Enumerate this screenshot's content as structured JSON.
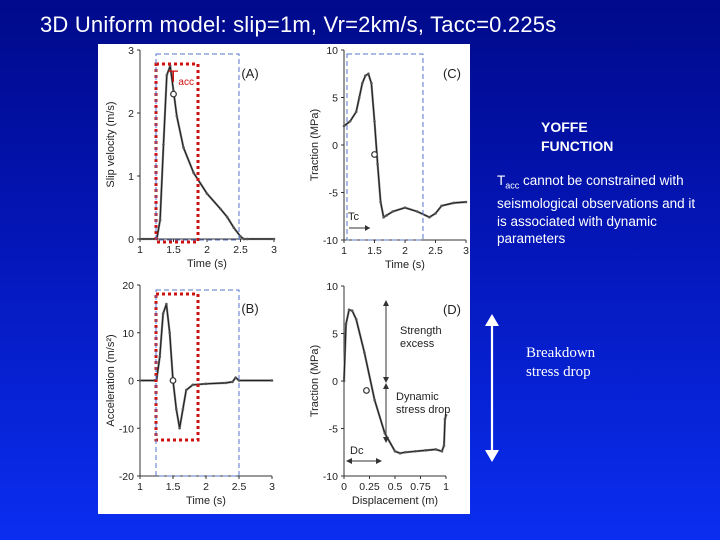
{
  "slide": {
    "title": "3D Uniform model: slip=1m, Vr=2km/s, Tacc=0.225s",
    "yoffe_label": "YOFFE\nFUNCTION",
    "note_main": "T",
    "note_sub": "acc",
    "note_rest": " cannot be constrained with seismological observations and it is associated with dynamic parameters",
    "breakdown": "Breakdown\nstress drop"
  },
  "colors": {
    "background_top": "#000a8a",
    "background_bottom": "#0a2ef0",
    "curve_dark": "#222222",
    "curve_marker": "#8a8a8a",
    "red_box": "#cc1111",
    "blue_box": "#5577cc"
  },
  "chart_data": [
    {
      "type": "line",
      "panel": "(A)",
      "xlabel": "Time (s)",
      "ylabel": "Slip velocity (m/s)",
      "xlim": [
        1,
        3
      ],
      "ylim": [
        0,
        3
      ],
      "xticks": [
        "1",
        "1.5",
        "2",
        "2.5",
        "3"
      ],
      "yticks": [
        "0",
        "1",
        "2",
        "3"
      ],
      "annotation": "T",
      "annotation_sub": "acc",
      "series": [
        {
          "x": [
            1.0,
            1.25,
            1.3,
            1.35,
            1.4,
            1.45,
            1.5,
            1.55,
            1.65,
            1.8,
            2.0,
            2.2,
            2.3,
            2.4,
            2.5,
            2.55,
            2.6,
            3.0
          ],
          "y": [
            0,
            0,
            0.3,
            1.5,
            2.6,
            2.75,
            2.35,
            1.95,
            1.45,
            1.05,
            0.72,
            0.48,
            0.35,
            0.18,
            0.04,
            0,
            0,
            0
          ]
        }
      ],
      "marker": {
        "x": 1.5,
        "y": 2.3
      }
    },
    {
      "type": "line",
      "panel": "(C)",
      "xlabel": "Time (s)",
      "ylabel": "Traction (MPa)",
      "xlim": [
        1,
        3
      ],
      "ylim": [
        -10,
        10
      ],
      "xticks": [
        "1",
        "1.5",
        "2",
        "2.5",
        "3"
      ],
      "yticks": [
        "-10",
        "-5",
        "0",
        "5",
        "10"
      ],
      "annotation": "Tc",
      "series": [
        {
          "x": [
            1.0,
            1.1,
            1.2,
            1.25,
            1.3,
            1.35,
            1.4,
            1.45,
            1.5,
            1.55,
            1.6,
            1.65,
            1.7,
            1.8,
            2.0,
            2.2,
            2.4,
            2.5,
            2.6,
            2.8,
            3.0
          ],
          "y": [
            2,
            2.5,
            3.5,
            5,
            6.5,
            7.3,
            7.5,
            6.5,
            2.5,
            -2,
            -6,
            -7.6,
            -7.4,
            -7.0,
            -6.6,
            -7.0,
            -7.6,
            -7.2,
            -6.4,
            -6.1,
            -6.0
          ]
        }
      ],
      "marker": {
        "x": 1.5,
        "y": -1.0
      }
    },
    {
      "type": "line",
      "panel": "(B)",
      "xlabel": "Time (s)",
      "ylabel": "Acceleration (m/s²)",
      "xlim": [
        1,
        3
      ],
      "ylim": [
        -20,
        20
      ],
      "xticks": [
        "1",
        "1.5",
        "2",
        "2.5",
        "3"
      ],
      "yticks": [
        "-20",
        "-10",
        "0",
        "10",
        "20"
      ],
      "series": [
        {
          "x": [
            1.0,
            1.25,
            1.3,
            1.35,
            1.4,
            1.45,
            1.5,
            1.55,
            1.6,
            1.65,
            1.7,
            1.8,
            2.0,
            2.3,
            2.4,
            2.45,
            2.5,
            3.0
          ],
          "y": [
            0,
            0,
            5,
            14,
            16,
            10,
            0,
            -6,
            -10,
            -6,
            -2,
            -0.9,
            -0.7,
            -0.5,
            -0.3,
            0.6,
            0,
            0
          ]
        }
      ],
      "marker": {
        "x": 1.5,
        "y": 0
      }
    },
    {
      "type": "line",
      "panel": "(D)",
      "xlabel": "Displacement (m)",
      "ylabel": "Traction (MPa)",
      "xlim": [
        0,
        1
      ],
      "ylim": [
        -10,
        10
      ],
      "xticks": [
        "0",
        "0.25",
        "0.5",
        "0.75",
        "1"
      ],
      "yticks": [
        "-10",
        "-5",
        "0",
        "5",
        "10"
      ],
      "annotations": [
        "Strength excess",
        "Dynamic stress drop",
        "Dc"
      ],
      "series": [
        {
          "x": [
            0.0,
            0.02,
            0.05,
            0.08,
            0.12,
            0.2,
            0.3,
            0.4,
            0.5,
            0.55,
            0.6,
            0.7,
            0.8,
            0.9,
            0.96,
            0.98,
            0.99,
            1.0
          ],
          "y": [
            0,
            6,
            7.5,
            7.4,
            6.5,
            3,
            -2,
            -5.5,
            -7.4,
            -7.6,
            -7.5,
            -7.4,
            -7.3,
            -7.2,
            -7.4,
            -6.8,
            -4,
            -3.6
          ]
        }
      ],
      "marker": {
        "x": 0.22,
        "y": -1.0
      }
    }
  ]
}
